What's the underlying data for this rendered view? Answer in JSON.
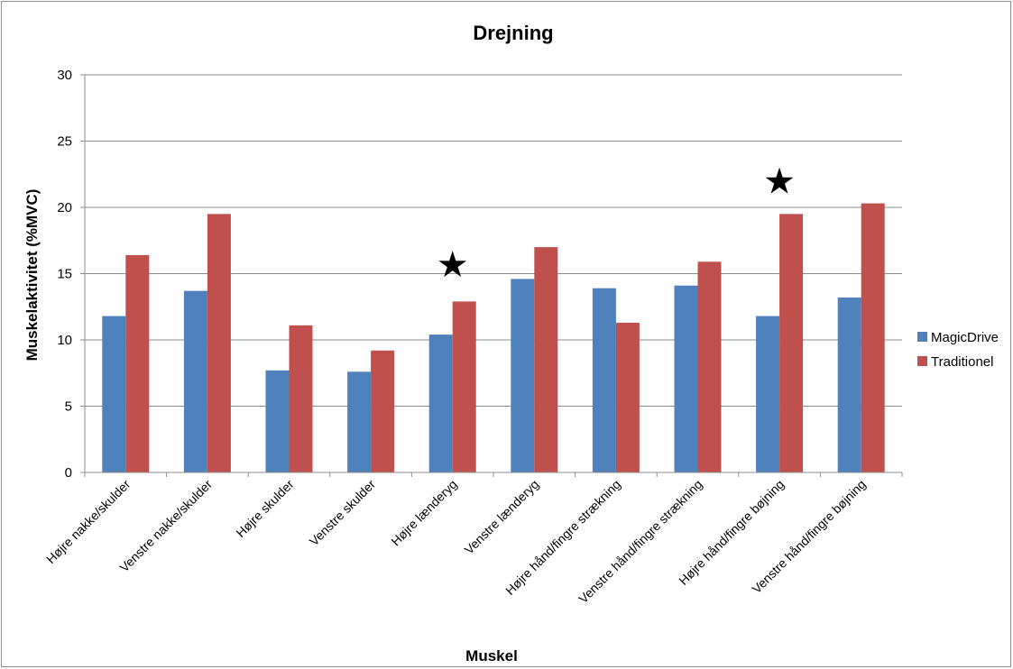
{
  "chart_data": {
    "type": "bar",
    "title": "Drejning",
    "xlabel": "Muskel",
    "ylabel": "Muskelaktivitet  (%MVC)",
    "ylim": [
      0,
      30
    ],
    "yticks": [
      0,
      5,
      10,
      15,
      20,
      25,
      30
    ],
    "grid": true,
    "legend_position": "right",
    "categories": [
      "Højre nakke/skulder",
      "Venstre nakke/skulder",
      "Højre skulder",
      "Venstre skulder",
      "Højre lænderyg",
      "Venstre lænderyg",
      "Højre hånd/fingre strækning",
      "Venstre hånd/fingre strækning",
      "Højre hånd/fingre bøjning",
      "Venstre hånd/fingre bøjning"
    ],
    "series": [
      {
        "name": "MagicDrive",
        "color": "#4f81bd",
        "values": [
          11.8,
          13.7,
          7.7,
          7.6,
          10.4,
          14.6,
          13.9,
          14.1,
          11.8,
          13.2
        ]
      },
      {
        "name": "Traditionel",
        "color": "#c0504d",
        "values": [
          16.4,
          19.5,
          11.1,
          9.2,
          12.9,
          17.0,
          11.3,
          15.9,
          19.5,
          20.3
        ]
      }
    ],
    "annotations": [
      {
        "symbol": "★",
        "category_index": 4,
        "y": 15.7
      },
      {
        "symbol": "★",
        "category_index": 8,
        "y": 22.0
      }
    ]
  }
}
